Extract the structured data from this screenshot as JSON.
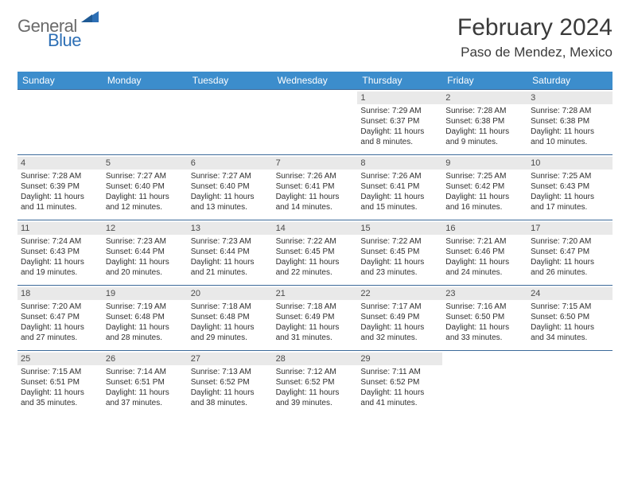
{
  "logo": {
    "text1": "General",
    "text2": "Blue"
  },
  "title": "February 2024",
  "location": "Paso de Mendez, Mexico",
  "colors": {
    "header_bg": "#3c8dcc",
    "header_text": "#ffffff",
    "daynum_bg": "#e9e9e9",
    "border": "#3c6a9a",
    "logo_gray": "#6a6a6a",
    "logo_blue": "#2d6fb5"
  },
  "weekdays": [
    "Sunday",
    "Monday",
    "Tuesday",
    "Wednesday",
    "Thursday",
    "Friday",
    "Saturday"
  ],
  "first_weekday_index": 4,
  "days": [
    {
      "n": 1,
      "rise": "7:29 AM",
      "set": "6:37 PM",
      "dl": "11 hours and 8 minutes."
    },
    {
      "n": 2,
      "rise": "7:28 AM",
      "set": "6:38 PM",
      "dl": "11 hours and 9 minutes."
    },
    {
      "n": 3,
      "rise": "7:28 AM",
      "set": "6:38 PM",
      "dl": "11 hours and 10 minutes."
    },
    {
      "n": 4,
      "rise": "7:28 AM",
      "set": "6:39 PM",
      "dl": "11 hours and 11 minutes."
    },
    {
      "n": 5,
      "rise": "7:27 AM",
      "set": "6:40 PM",
      "dl": "11 hours and 12 minutes."
    },
    {
      "n": 6,
      "rise": "7:27 AM",
      "set": "6:40 PM",
      "dl": "11 hours and 13 minutes."
    },
    {
      "n": 7,
      "rise": "7:26 AM",
      "set": "6:41 PM",
      "dl": "11 hours and 14 minutes."
    },
    {
      "n": 8,
      "rise": "7:26 AM",
      "set": "6:41 PM",
      "dl": "11 hours and 15 minutes."
    },
    {
      "n": 9,
      "rise": "7:25 AM",
      "set": "6:42 PM",
      "dl": "11 hours and 16 minutes."
    },
    {
      "n": 10,
      "rise": "7:25 AM",
      "set": "6:43 PM",
      "dl": "11 hours and 17 minutes."
    },
    {
      "n": 11,
      "rise": "7:24 AM",
      "set": "6:43 PM",
      "dl": "11 hours and 19 minutes."
    },
    {
      "n": 12,
      "rise": "7:23 AM",
      "set": "6:44 PM",
      "dl": "11 hours and 20 minutes."
    },
    {
      "n": 13,
      "rise": "7:23 AM",
      "set": "6:44 PM",
      "dl": "11 hours and 21 minutes."
    },
    {
      "n": 14,
      "rise": "7:22 AM",
      "set": "6:45 PM",
      "dl": "11 hours and 22 minutes."
    },
    {
      "n": 15,
      "rise": "7:22 AM",
      "set": "6:45 PM",
      "dl": "11 hours and 23 minutes."
    },
    {
      "n": 16,
      "rise": "7:21 AM",
      "set": "6:46 PM",
      "dl": "11 hours and 24 minutes."
    },
    {
      "n": 17,
      "rise": "7:20 AM",
      "set": "6:47 PM",
      "dl": "11 hours and 26 minutes."
    },
    {
      "n": 18,
      "rise": "7:20 AM",
      "set": "6:47 PM",
      "dl": "11 hours and 27 minutes."
    },
    {
      "n": 19,
      "rise": "7:19 AM",
      "set": "6:48 PM",
      "dl": "11 hours and 28 minutes."
    },
    {
      "n": 20,
      "rise": "7:18 AM",
      "set": "6:48 PM",
      "dl": "11 hours and 29 minutes."
    },
    {
      "n": 21,
      "rise": "7:18 AM",
      "set": "6:49 PM",
      "dl": "11 hours and 31 minutes."
    },
    {
      "n": 22,
      "rise": "7:17 AM",
      "set": "6:49 PM",
      "dl": "11 hours and 32 minutes."
    },
    {
      "n": 23,
      "rise": "7:16 AM",
      "set": "6:50 PM",
      "dl": "11 hours and 33 minutes."
    },
    {
      "n": 24,
      "rise": "7:15 AM",
      "set": "6:50 PM",
      "dl": "11 hours and 34 minutes."
    },
    {
      "n": 25,
      "rise": "7:15 AM",
      "set": "6:51 PM",
      "dl": "11 hours and 35 minutes."
    },
    {
      "n": 26,
      "rise": "7:14 AM",
      "set": "6:51 PM",
      "dl": "11 hours and 37 minutes."
    },
    {
      "n": 27,
      "rise": "7:13 AM",
      "set": "6:52 PM",
      "dl": "11 hours and 38 minutes."
    },
    {
      "n": 28,
      "rise": "7:12 AM",
      "set": "6:52 PM",
      "dl": "11 hours and 39 minutes."
    },
    {
      "n": 29,
      "rise": "7:11 AM",
      "set": "6:52 PM",
      "dl": "11 hours and 41 minutes."
    }
  ],
  "labels": {
    "sunrise": "Sunrise:",
    "sunset": "Sunset:",
    "daylight": "Daylight:"
  }
}
